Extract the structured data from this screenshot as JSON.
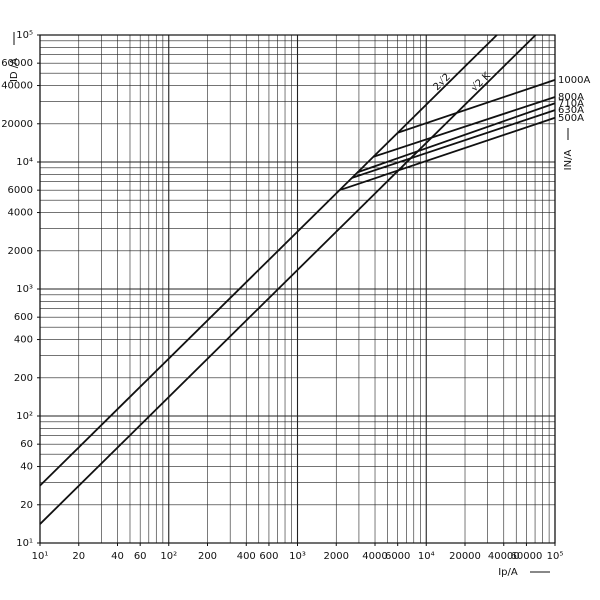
{
  "chart_data": {
    "type": "line",
    "log_x": true,
    "log_y": true,
    "grid": true,
    "color": "#111111",
    "xlabel": "Ip/A",
    "ylabel": "ID /A",
    "y2label": "IN/A",
    "xlim": [
      10,
      100000
    ],
    "ylim": [
      10,
      100000
    ],
    "xticks": [
      {
        "value": 10,
        "label": "10¹"
      },
      20,
      40,
      60,
      {
        "value": 100,
        "label": "10²"
      },
      200,
      400,
      600,
      {
        "value": 1000,
        "label": "10³"
      },
      2000,
      4000,
      6000,
      {
        "value": 10000,
        "label": "10⁴"
      },
      20000,
      40000,
      60000,
      {
        "value": 100000,
        "label": "10⁵"
      }
    ],
    "yticks": [
      {
        "value": 10,
        "label": "10¹"
      },
      20,
      40,
      60,
      {
        "value": 100,
        "label": "10²"
      },
      200,
      400,
      600,
      {
        "value": 1000,
        "label": "10³"
      },
      2000,
      4000,
      6000,
      {
        "value": 10000,
        "label": "10⁴"
      },
      20000,
      40000,
      60000,
      {
        "value": 100000,
        "label": "10⁵"
      }
    ],
    "grid_values": [
      10,
      20,
      30,
      40,
      50,
      60,
      70,
      80,
      90,
      100,
      200,
      300,
      400,
      500,
      600,
      700,
      800,
      900,
      1000,
      2000,
      3000,
      4000,
      5000,
      6000,
      7000,
      8000,
      9000,
      10000,
      20000,
      30000,
      40000,
      50000,
      60000,
      70000,
      80000,
      90000,
      100000
    ],
    "series": [
      {
        "name": "2√2",
        "x": [
          10,
          35355
        ],
        "values": [
          28.3,
          100000
        ]
      },
      {
        "name": "√2 K",
        "x": [
          10,
          70711
        ],
        "values": [
          14.1,
          100000
        ]
      },
      {
        "name": "1000A",
        "x": [
          6000,
          100000
        ],
        "values": [
          17000,
          44300
        ]
      },
      {
        "name": "800A",
        "x": [
          3890,
          100000
        ],
        "values": [
          11000,
          32500
        ]
      },
      {
        "name": "710A",
        "x": [
          2930,
          100000
        ],
        "values": [
          8300,
          29000
        ]
      },
      {
        "name": "630A",
        "x": [
          2650,
          100000
        ],
        "values": [
          7500,
          25600
        ]
      },
      {
        "name": "500A",
        "x": [
          2120,
          100000
        ],
        "values": [
          6000,
          22300
        ]
      }
    ]
  }
}
